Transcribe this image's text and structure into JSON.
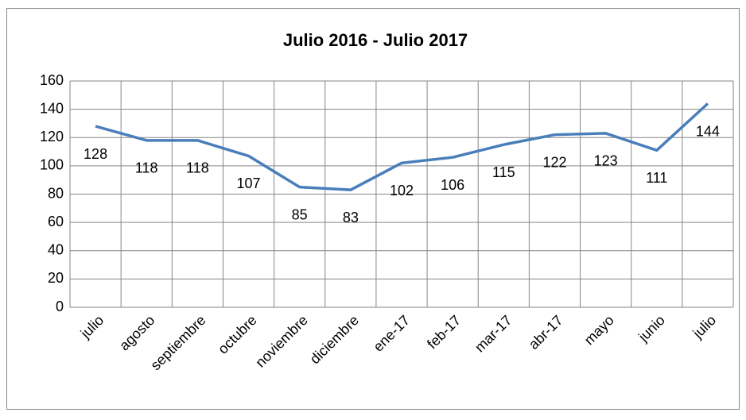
{
  "chart_data": {
    "type": "line",
    "title": "Julio 2016 - Julio 2017",
    "categories": [
      "julio",
      "agosto",
      "septiembre",
      "octubre",
      "noviembre",
      "diciembre",
      "ene-17",
      "feb-17",
      "mar-17",
      "abr-17",
      "mayo",
      "junio",
      "julio"
    ],
    "values": [
      128,
      118,
      118,
      107,
      85,
      83,
      102,
      106,
      115,
      122,
      123,
      111,
      144
    ],
    "color": "#4a7ebb",
    "ylim": [
      0,
      160
    ],
    "yticks": [
      0,
      20,
      40,
      60,
      80,
      100,
      120,
      140,
      160
    ],
    "grid": true
  }
}
